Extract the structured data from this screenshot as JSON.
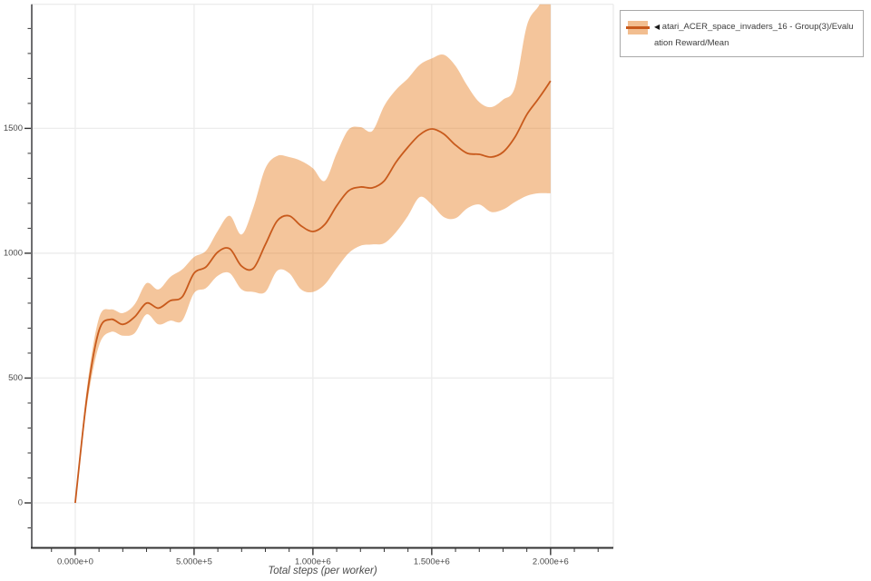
{
  "legend": {
    "marker": "◀",
    "label": "atari_ACER_space_invaders_16 - Group(3)/Evaluation Reward/Mean"
  },
  "colors": {
    "line": "#c85a1c",
    "band": "#e67e22",
    "band_opacity": 0.45,
    "grid": "#ececec",
    "spine_left": "#6e6e70",
    "spine_bottom": "#333333",
    "tick": "#333333",
    "text": "#4a4a4a",
    "legend_border": "#a9a9a9",
    "background": "#ffffff"
  },
  "chart_data": {
    "type": "line",
    "title": "",
    "xlabel": "Total steps (per worker)",
    "ylabel": "",
    "grid": "major-both",
    "legend_position": "outside-top-right",
    "xlim": [
      -183000,
      2264000
    ],
    "ylim": [
      -180,
      1997
    ],
    "x_major_ticks": [
      0,
      500000,
      1000000,
      1500000,
      2000000
    ],
    "x_tick_labels": [
      "0.000e+0",
      "5.000e+5",
      "1.000e+6",
      "1.500e+6",
      "2.000e+6"
    ],
    "x_minor_step": 100000,
    "y_major_ticks": [
      0,
      500,
      1000,
      1500
    ],
    "y_tick_labels": [
      "0",
      "500",
      "1000",
      "1500"
    ],
    "y_minor_step": 100,
    "series": [
      {
        "name": "atari_ACER_space_invaders_16 - Group(3)/Evaluation Reward/Mean",
        "style": "line-with-confidence-band",
        "x": [
          0,
          50000,
          100000,
          150000,
          200000,
          250000,
          300000,
          350000,
          400000,
          450000,
          500000,
          550000,
          600000,
          650000,
          700000,
          750000,
          800000,
          850000,
          900000,
          950000,
          1000000,
          1050000,
          1100000,
          1150000,
          1200000,
          1250000,
          1300000,
          1350000,
          1400000,
          1450000,
          1500000,
          1550000,
          1600000,
          1650000,
          1700000,
          1750000,
          1800000,
          1850000,
          1900000,
          1950000,
          2000000
        ],
        "mean": [
          0,
          430,
          690,
          735,
          715,
          745,
          800,
          780,
          810,
          825,
          920,
          945,
          1005,
          1018,
          948,
          940,
          1035,
          1130,
          1150,
          1110,
          1087,
          1115,
          1190,
          1250,
          1265,
          1262,
          1290,
          1365,
          1425,
          1475,
          1498,
          1478,
          1433,
          1400,
          1396,
          1385,
          1405,
          1465,
          1555,
          1620,
          1690
        ],
        "band_upper": [
          5,
          465,
          740,
          775,
          760,
          795,
          880,
          855,
          905,
          935,
          985,
          1010,
          1090,
          1150,
          1075,
          1185,
          1340,
          1390,
          1385,
          1370,
          1340,
          1290,
          1400,
          1495,
          1505,
          1490,
          1590,
          1655,
          1700,
          1755,
          1780,
          1795,
          1750,
          1670,
          1605,
          1585,
          1615,
          1665,
          1910,
          1990,
          2060
        ],
        "band_lower": [
          -5,
          395,
          630,
          685,
          670,
          680,
          755,
          715,
          730,
          730,
          840,
          860,
          910,
          920,
          855,
          845,
          845,
          930,
          920,
          855,
          845,
          875,
          940,
          1000,
          1030,
          1035,
          1040,
          1085,
          1150,
          1225,
          1195,
          1145,
          1140,
          1180,
          1195,
          1165,
          1175,
          1205,
          1230,
          1240,
          1240
        ]
      }
    ]
  }
}
